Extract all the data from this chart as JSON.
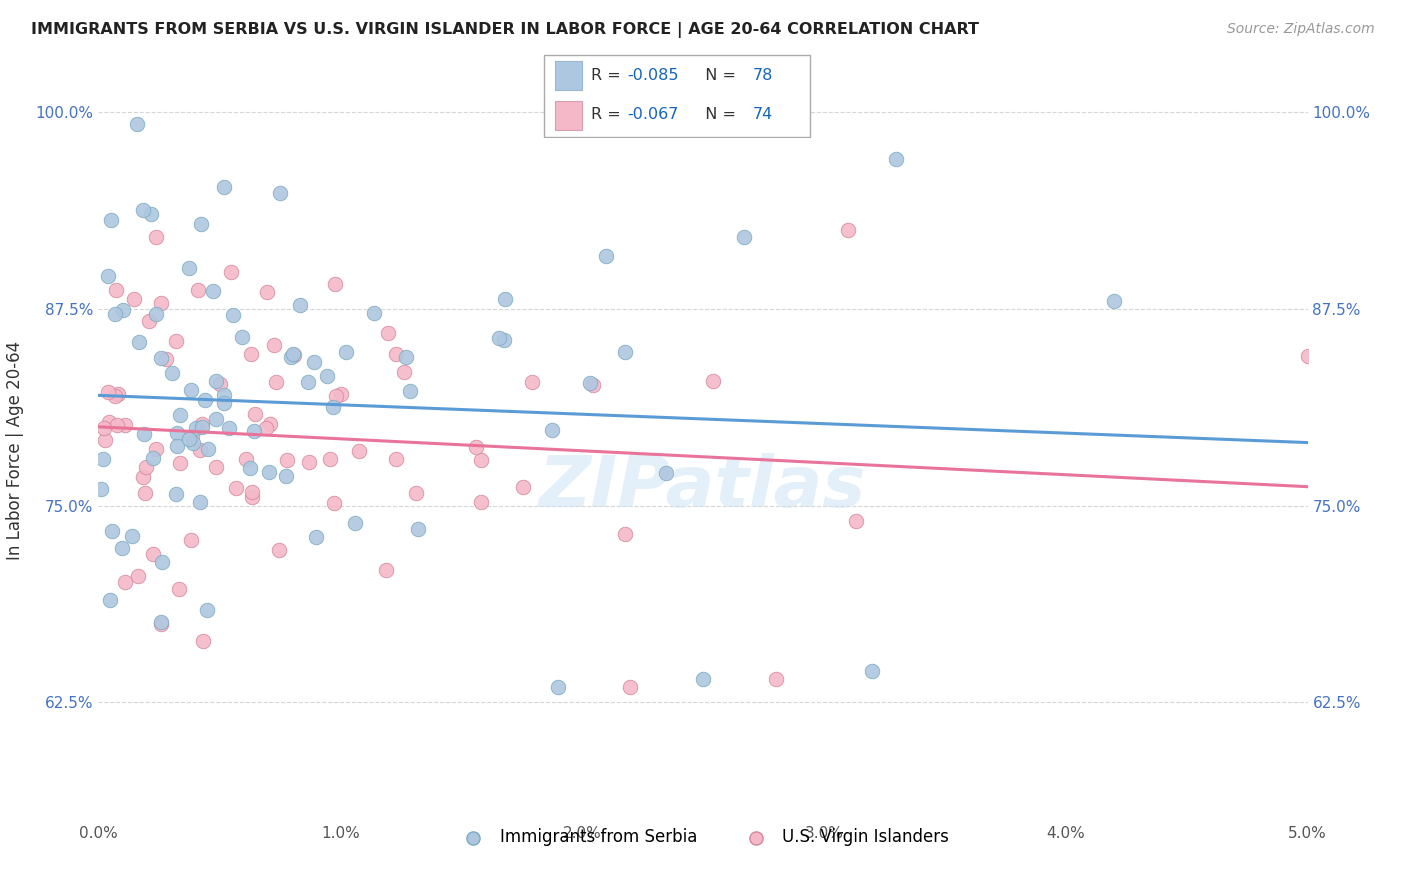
{
  "title": "IMMIGRANTS FROM SERBIA VS U.S. VIRGIN ISLANDER IN LABOR FORCE | AGE 20-64 CORRELATION CHART",
  "source": "Source: ZipAtlas.com",
  "ylabel": "In Labor Force | Age 20-64",
  "xlim": [
    0.0,
    0.05
  ],
  "ylim": [
    0.55,
    1.02
  ],
  "yticks": [
    0.625,
    0.75,
    0.875,
    1.0
  ],
  "ytick_labels": [
    "62.5%",
    "75.0%",
    "87.5%",
    "100.0%"
  ],
  "xticks": [
    0.0,
    0.01,
    0.02,
    0.03,
    0.04,
    0.05
  ],
  "xtick_labels": [
    "0.0%",
    "1.0%",
    "2.0%",
    "3.0%",
    "4.0%",
    "5.0%"
  ],
  "color_serbia": "#aec7e0",
  "color_virgin": "#f4b8c8",
  "color_serbia_line": "#5b9bd5",
  "color_virgin_line": "#e8749a",
  "color_text_blue": "#1565C0",
  "color_tick_blue": "#4472C4",
  "watermark": "ZIPatlas",
  "serbia_line_x0": 0.0,
  "serbia_line_y0": 0.82,
  "serbia_line_x1": 0.05,
  "serbia_line_y1": 0.79,
  "virgin_line_x0": 0.0,
  "virgin_line_y0": 0.8,
  "virgin_line_x1": 0.05,
  "virgin_line_y1": 0.762
}
